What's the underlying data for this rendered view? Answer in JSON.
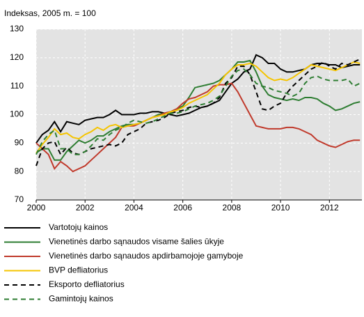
{
  "chart_data": {
    "type": "line",
    "y_label": "Indeksas, 2005 m. = 100",
    "x": [
      2000,
      2000.25,
      2000.5,
      2000.75,
      2001,
      2001.25,
      2001.5,
      2001.75,
      2002,
      2002.25,
      2002.5,
      2002.75,
      2003,
      2003.25,
      2003.5,
      2003.75,
      2004,
      2004.25,
      2004.5,
      2004.75,
      2005,
      2005.25,
      2005.5,
      2005.75,
      2006,
      2006.25,
      2006.5,
      2006.75,
      2007,
      2007.25,
      2007.5,
      2007.75,
      2008,
      2008.25,
      2008.5,
      2008.75,
      2009,
      2009.25,
      2009.5,
      2009.75,
      2010,
      2010.25,
      2010.5,
      2010.75,
      2011,
      2011.25,
      2011.5,
      2011.75,
      2012,
      2012.25,
      2012.5,
      2012.75,
      2013,
      2013.25
    ],
    "xlim": [
      2000,
      2013.33
    ],
    "xticks": [
      2000,
      2002,
      2004,
      2006,
      2008,
      2010,
      2012
    ],
    "ylim": [
      70,
      130
    ],
    "yticks": [
      70,
      80,
      90,
      100,
      110,
      120,
      130
    ],
    "grid": true,
    "series": [
      {
        "name": "Vartotojų kainos",
        "color": "#000000",
        "dashed": false,
        "values": [
          90,
          93,
          94.5,
          97.5,
          94,
          97.5,
          97,
          96.5,
          98,
          98.5,
          99,
          99,
          100,
          101.5,
          100,
          100,
          100,
          100.5,
          100.5,
          101,
          101,
          100.5,
          100,
          99.5,
          100,
          100.5,
          101.5,
          102.5,
          103,
          104,
          105,
          108,
          111,
          112.5,
          115,
          116,
          121,
          120,
          118,
          118,
          116,
          115,
          115,
          115.5,
          116,
          117.5,
          118,
          118,
          117.5,
          117.5,
          116.5,
          117,
          117.5,
          117.5
        ]
      },
      {
        "name": "Vienetinės darbo sąnaudos visame šalies ūkyje",
        "color": "#2e7d32",
        "dashed": false,
        "values": [
          86.5,
          88,
          88,
          84,
          84,
          87,
          89,
          91,
          90,
          91,
          92.5,
          92.5,
          94,
          95,
          96,
          96.5,
          96.5,
          97,
          98,
          99,
          100,
          100.5,
          101,
          102,
          103,
          106,
          109.5,
          110,
          110.5,
          111,
          112,
          114,
          116,
          118.5,
          118.5,
          119,
          115,
          110,
          107,
          106,
          105.5,
          105,
          105.5,
          105,
          106,
          106,
          105.5,
          104,
          103,
          101.5,
          102,
          103,
          104,
          104.5
        ]
      },
      {
        "name": "Vienetinės darbo sąnaudos apdirbamojoje gamyboje",
        "color": "#c0392b",
        "dashed": false,
        "values": [
          90,
          88,
          86,
          81,
          83.5,
          82,
          80,
          81,
          82,
          84,
          86,
          88,
          90,
          92,
          95.5,
          96,
          96,
          97,
          98,
          99,
          99.5,
          100.5,
          101,
          102,
          104,
          105.5,
          106,
          107,
          108,
          110,
          110.5,
          110.5,
          111,
          108,
          104,
          100,
          96,
          95.5,
          95,
          95,
          95,
          95.5,
          95.5,
          95,
          94,
          93,
          91,
          90,
          89,
          88.5,
          89.5,
          90.5,
          91,
          91
        ]
      },
      {
        "name": "BVP defliatorius",
        "color": "#f5c400",
        "dashed": false,
        "values": [
          86.5,
          89.5,
          92,
          95,
          93,
          93.5,
          92,
          91.5,
          93,
          94,
          95.5,
          94.5,
          96,
          96.5,
          95.5,
          96,
          96.5,
          97,
          98,
          99,
          99.5,
          100,
          101,
          101.5,
          102.5,
          104,
          105,
          106,
          107,
          109,
          111,
          114,
          116,
          117.5,
          117.5,
          118,
          117,
          115,
          113,
          112,
          112.5,
          112,
          113,
          114.5,
          116,
          117.5,
          117,
          116.5,
          116,
          115.5,
          116.5,
          117.5,
          118.5,
          118
        ]
      },
      {
        "name": "Eksporto defliatorius",
        "color": "#000000",
        "dashed": true,
        "values": [
          82,
          88,
          90,
          90.5,
          86,
          88.5,
          86.5,
          86,
          87,
          88,
          88.5,
          89,
          89.5,
          89,
          90,
          93,
          94,
          95,
          97,
          97.5,
          98,
          99,
          100.5,
          101,
          101.5,
          102.5,
          103,
          102.5,
          103,
          104,
          106,
          111,
          113,
          117,
          117,
          114,
          108,
          102,
          101.5,
          103,
          104,
          107.5,
          110,
          112,
          114,
          116,
          117,
          118.5,
          117,
          116,
          118,
          117.5,
          118.5,
          119.5
        ]
      },
      {
        "name": "Gamintojų kainos",
        "color": "#2e7d32",
        "dashed": true,
        "values": [
          86,
          90.5,
          93,
          94.5,
          88,
          88,
          86,
          86,
          87,
          89,
          91.5,
          91,
          93,
          94.5,
          95.5,
          97,
          98,
          97.5,
          97,
          97.5,
          98.5,
          99.5,
          100.5,
          100.5,
          101,
          102,
          103,
          103.5,
          104,
          105,
          106.5,
          110,
          113.5,
          115.5,
          116,
          114,
          111,
          110,
          109.5,
          108.5,
          108,
          107.5,
          106.5,
          107.5,
          111,
          113,
          113.5,
          112.5,
          112,
          112,
          112,
          112.5,
          110,
          111
        ]
      }
    ]
  }
}
